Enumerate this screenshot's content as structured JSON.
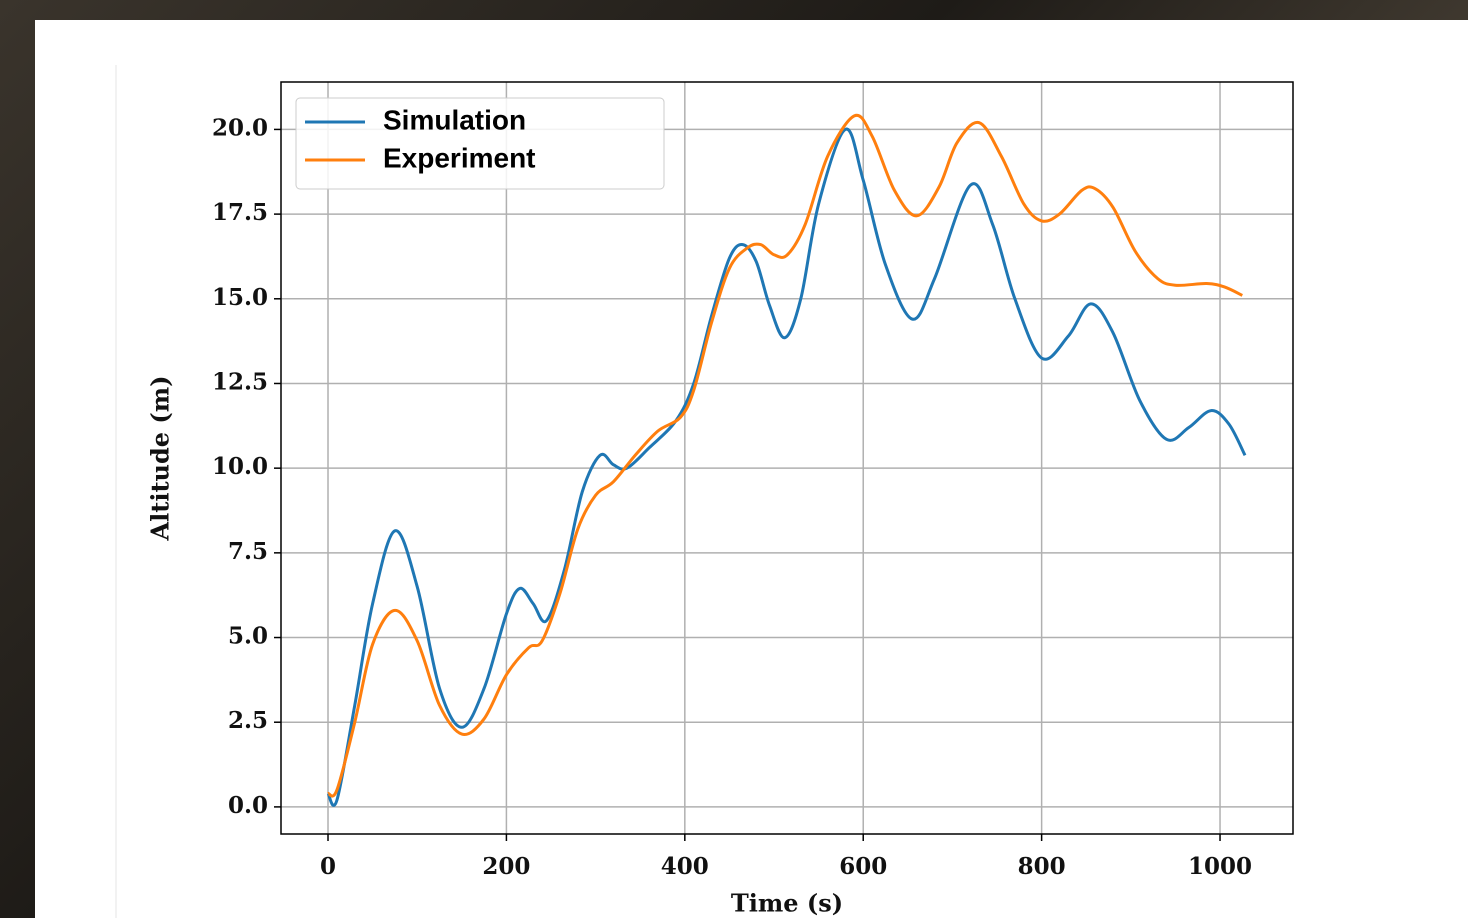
{
  "chart_data": {
    "type": "line",
    "xlabel": "Time (s)",
    "ylabel": "Altitude (m)",
    "xlim": [
      -52.7,
      1081.8
    ],
    "ylim": [
      -0.8,
      21.4
    ],
    "xticks": [
      0,
      200,
      400,
      600,
      800,
      1000
    ],
    "yticks": [
      {
        "value": 0,
        "label": "0.0"
      },
      {
        "value": 2.5,
        "label": "2.5"
      },
      {
        "value": 5,
        "label": "5.0"
      },
      {
        "value": 7.5,
        "label": "7.5"
      },
      {
        "value": 10,
        "label": "10.0"
      },
      {
        "value": 12.5,
        "label": "12.5"
      },
      {
        "value": 15,
        "label": "15.0"
      },
      {
        "value": 17.5,
        "label": "17.5"
      },
      {
        "value": 20,
        "label": "20.0"
      }
    ],
    "grid": true,
    "legend": "upper left",
    "series": [
      {
        "name": "Simulation",
        "color": "#1f77b4",
        "x": [
          0,
          10,
          30,
          50,
          75,
          100,
          125,
          150,
          175,
          200,
          215,
          230,
          245,
          265,
          285,
          305,
          320,
          335,
          360,
          390,
          410,
          430,
          450,
          465,
          480,
          495,
          512,
          530,
          550,
          580,
          600,
          625,
          655,
          680,
          720,
          745,
          770,
          800,
          830,
          855,
          880,
          910,
          940,
          965,
          990,
          1010,
          1028
        ],
        "values": [
          0.4,
          0.2,
          3,
          6,
          8.15,
          6.5,
          3.5,
          2.35,
          3.5,
          5.7,
          6.45,
          6.0,
          5.5,
          7,
          9.3,
          10.38,
          10.1,
          10.0,
          10.6,
          11.4,
          12.5,
          14.5,
          16.2,
          16.6,
          16.1,
          14.8,
          13.85,
          15,
          17.8,
          20.0,
          18.5,
          16,
          14.4,
          15.6,
          18.35,
          17.2,
          15,
          13.25,
          13.9,
          14.85,
          14,
          12,
          10.85,
          11.2,
          11.7,
          11.3,
          10.38
        ]
      },
      {
        "name": "Experiment",
        "color": "#ff7f0e",
        "x": [
          0,
          10,
          30,
          50,
          75,
          100,
          125,
          150,
          175,
          200,
          225,
          240,
          260,
          280,
          300,
          320,
          345,
          370,
          395,
          410,
          430,
          450,
          470,
          485,
          500,
          515,
          535,
          560,
          590,
          610,
          635,
          660,
          685,
          705,
          730,
          755,
          780,
          800,
          820,
          845,
          860,
          880,
          905,
          930,
          950,
          985,
          1005,
          1025
        ],
        "values": [
          0.4,
          0.5,
          2.5,
          4.8,
          5.8,
          4.9,
          3,
          2.15,
          2.6,
          3.9,
          4.7,
          4.9,
          6.3,
          8.2,
          9.2,
          9.6,
          10.4,
          11.1,
          11.5,
          12.3,
          14.3,
          15.9,
          16.5,
          16.6,
          16.3,
          16.3,
          17.2,
          19.2,
          20.4,
          19.8,
          18.2,
          17.45,
          18.3,
          19.6,
          20.2,
          19.2,
          17.8,
          17.3,
          17.5,
          18.2,
          18.25,
          17.7,
          16.4,
          15.6,
          15.4,
          15.45,
          15.35,
          15.1
        ]
      }
    ]
  }
}
